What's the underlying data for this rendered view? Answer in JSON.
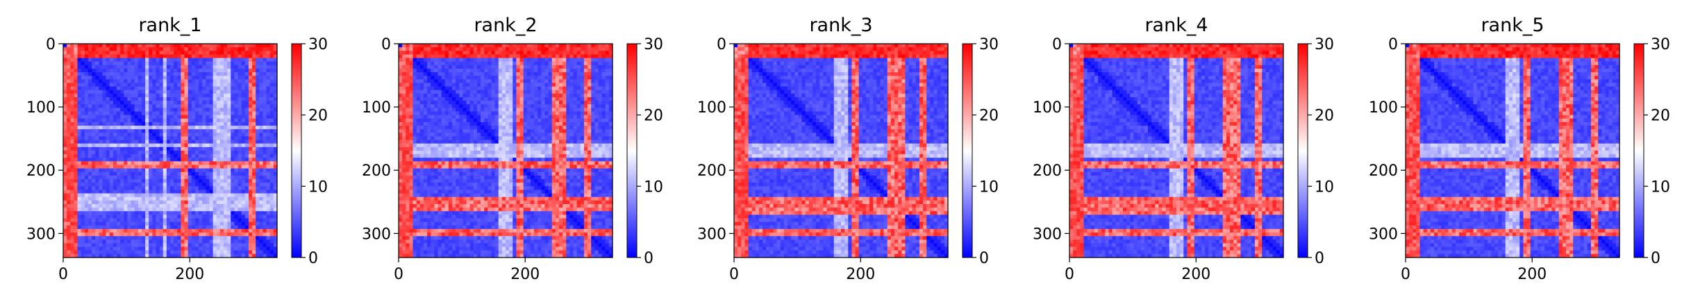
{
  "chart_data": [
    {
      "type": "heatmap",
      "title": "rank_1",
      "x_ticks": [
        0,
        200
      ],
      "y_ticks": [
        0,
        100,
        200,
        300
      ],
      "xlim": [
        0,
        338
      ],
      "ylim": [
        338,
        0
      ],
      "colorbar": {
        "min": 0,
        "max": 30,
        "ticks": [
          0,
          10,
          20,
          30
        ]
      },
      "colormap": {
        "low": "#0000ff",
        "mid": "#ffffff",
        "high": "#ff0000"
      },
      "features": {
        "hot_rows": [
          [
            5,
            25
          ],
          [
            188,
            198
          ],
          [
            295,
            305
          ]
        ],
        "hot_cols": [
          [
            5,
            15
          ]
        ],
        "mid_rows": [
          [
            155,
            162
          ],
          [
            242,
            262
          ],
          [
            268,
            272
          ]
        ],
        "mid_cols": [
          [
            130,
            134
          ],
          [
            235,
            240
          ],
          [
            285,
            290
          ]
        ]
      }
    },
    {
      "type": "heatmap",
      "title": "rank_2",
      "x_ticks": [
        0,
        200
      ],
      "y_ticks": [
        0,
        100,
        200,
        300
      ],
      "xlim": [
        0,
        338
      ],
      "ylim": [
        338,
        0
      ],
      "colorbar": {
        "min": 0,
        "max": 30,
        "ticks": [
          0,
          10,
          20,
          30
        ]
      },
      "colormap": {
        "low": "#0000ff",
        "mid": "#ffffff",
        "high": "#ff0000"
      },
      "features": {
        "hot_rows": [
          [
            5,
            22
          ],
          [
            188,
            198
          ],
          [
            245,
            265
          ],
          [
            295,
            305
          ]
        ],
        "hot_cols": [
          [
            5,
            15
          ]
        ],
        "mid_rows": [
          [
            160,
            180
          ],
          [
            268,
            272
          ]
        ],
        "mid_cols": [
          [
            250,
            265
          ]
        ]
      }
    },
    {
      "type": "heatmap",
      "title": "rank_3",
      "x_ticks": [
        0,
        200
      ],
      "y_ticks": [
        0,
        100,
        200,
        300
      ],
      "xlim": [
        0,
        338
      ],
      "ylim": [
        338,
        0
      ],
      "colorbar": {
        "min": 0,
        "max": 30,
        "ticks": [
          0,
          10,
          20,
          30
        ]
      },
      "colormap": {
        "low": "#0000ff",
        "mid": "#ffffff",
        "high": "#ff0000"
      },
      "features": {
        "hot_rows": [
          [
            5,
            22
          ],
          [
            188,
            198
          ],
          [
            245,
            268
          ],
          [
            295,
            305
          ]
        ],
        "hot_cols": [
          [
            5,
            15
          ]
        ],
        "mid_rows": [
          [
            160,
            180
          ]
        ],
        "mid_cols": [
          [
            250,
            265
          ]
        ]
      }
    },
    {
      "type": "heatmap",
      "title": "rank_4",
      "x_ticks": [
        0,
        200
      ],
      "y_ticks": [
        0,
        100,
        200,
        300
      ],
      "xlim": [
        0,
        338
      ],
      "ylim": [
        338,
        0
      ],
      "colorbar": {
        "min": 0,
        "max": 30,
        "ticks": [
          0,
          10,
          20,
          30
        ]
      },
      "colormap": {
        "low": "#0000ff",
        "mid": "#ffffff",
        "high": "#ff0000"
      },
      "features": {
        "hot_rows": [
          [
            5,
            22
          ],
          [
            188,
            198
          ],
          [
            245,
            268
          ],
          [
            295,
            305
          ]
        ],
        "hot_cols": [
          [
            5,
            15
          ]
        ],
        "mid_rows": [
          [
            160,
            180
          ]
        ],
        "mid_cols": [
          [
            250,
            262
          ]
        ]
      }
    },
    {
      "type": "heatmap",
      "title": "rank_5",
      "x_ticks": [
        0,
        200
      ],
      "y_ticks": [
        0,
        100,
        200,
        300
      ],
      "xlim": [
        0,
        338
      ],
      "ylim": [
        338,
        0
      ],
      "colorbar": {
        "min": 0,
        "max": 30,
        "ticks": [
          0,
          10,
          20,
          30
        ]
      },
      "colormap": {
        "low": "#0000ff",
        "mid": "#ffffff",
        "high": "#ff0000"
      },
      "features": {
        "hot_rows": [
          [
            5,
            22
          ],
          [
            188,
            198
          ],
          [
            245,
            265
          ],
          [
            295,
            305
          ]
        ],
        "hot_cols": [
          [
            5,
            15
          ]
        ],
        "mid_rows": [
          [
            160,
            180
          ]
        ],
        "mid_cols": [
          [
            250,
            262
          ]
        ]
      }
    }
  ]
}
